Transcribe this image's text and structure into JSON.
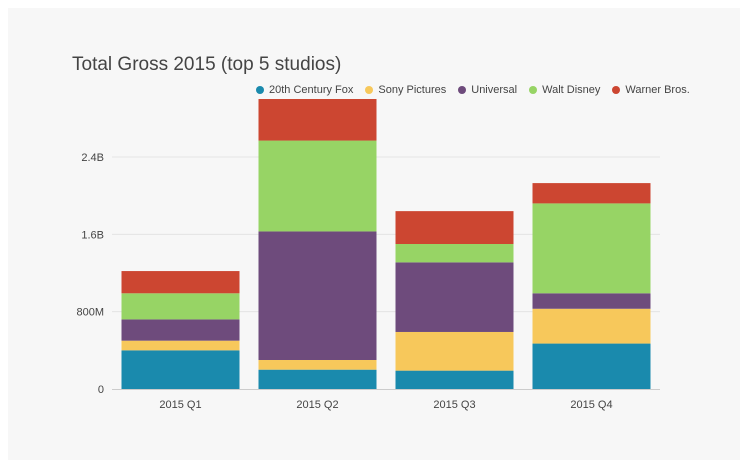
{
  "chart_data": {
    "type": "bar",
    "stacked": true,
    "title": "Total Gross 2015 (top 5 studios)",
    "xlabel": "",
    "ylabel": "",
    "categories": [
      "2015 Q1",
      "2015 Q2",
      "2015 Q3",
      "2015 Q4"
    ],
    "series": [
      {
        "name": "20th Century Fox",
        "color": "#1a8aad",
        "values": [
          400000000,
          200000000,
          190000000,
          470000000
        ]
      },
      {
        "name": "Sony Pictures",
        "color": "#f7c85b",
        "values": [
          100000000,
          100000000,
          400000000,
          360000000
        ]
      },
      {
        "name": "Universal",
        "color": "#6e4b7c",
        "values": [
          220000000,
          1330000000,
          720000000,
          160000000
        ]
      },
      {
        "name": "Walt Disney",
        "color": "#97d465",
        "values": [
          270000000,
          940000000,
          190000000,
          930000000
        ]
      },
      {
        "name": "Warner Bros.",
        "color": "#cc4631",
        "values": [
          230000000,
          430000000,
          340000000,
          210000000
        ]
      }
    ],
    "yticks": [
      0,
      800000000,
      1600000000,
      2400000000
    ],
    "ytick_labels": [
      "0",
      "800M",
      "1.6B",
      "2.4B"
    ],
    "ylim": [
      0,
      2950000000
    ],
    "grid": true,
    "legend_position": "top-right"
  }
}
